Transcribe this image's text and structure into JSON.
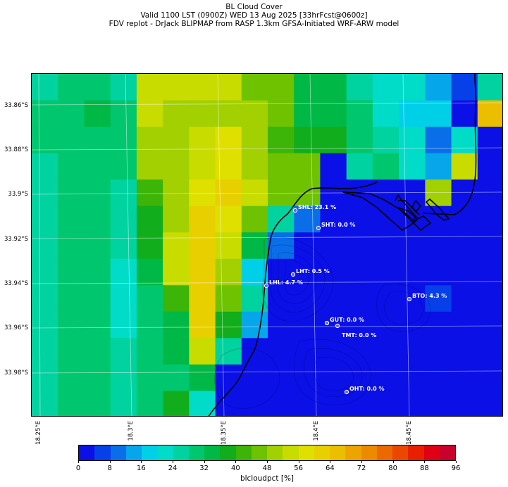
{
  "title": {
    "line1": "BL Cloud Cover",
    "line2": "Valid 1100 LST (0900Z) WED 13 Aug 2025 [33hrFcst@0600z]",
    "line3": "FDV replot - DrJack BLIPMAP from RASP 1.3km GFSA-Initiated WRF-ARW model"
  },
  "lat_labels": [
    "33.86°S",
    "33.88°S",
    "33.9°S",
    "33.92°S",
    "33.94°S",
    "33.96°S",
    "33.98°S"
  ],
  "lon_labels": [
    "18.25°E",
    "18.3°E",
    "18.35°E",
    "18.4°E",
    "18.45°E"
  ],
  "colorbar": {
    "label": "blcloudpct [%]",
    "ticks": [
      "0",
      "8",
      "16",
      "24",
      "32",
      "40",
      "48",
      "56",
      "64",
      "72",
      "80",
      "88",
      "96"
    ],
    "colors": [
      "#0a10e6",
      "#0640e8",
      "#0a6ee9",
      "#06a6ea",
      "#00cfe8",
      "#00dcc8",
      "#00d2a0",
      "#00c66e",
      "#00b845",
      "#12ad1c",
      "#3cb408",
      "#6ec200",
      "#a2d000",
      "#c8dc00",
      "#e0e000",
      "#e8d000",
      "#ecbe00",
      "#eea400",
      "#ee8a00",
      "#ec6800",
      "#ea4800",
      "#e82000",
      "#e00014",
      "#c8002c"
    ]
  },
  "stations": [
    {
      "name": "SHL",
      "value": "23.1 %",
      "label": "SHL: 23.1 %"
    },
    {
      "name": "SHT",
      "value": "0.0 %",
      "label": "SHT: 0.0 %"
    },
    {
      "name": "LHT",
      "value": "0.5 %",
      "label": "LHT: 0.5 %"
    },
    {
      "name": "LHL",
      "value": "4.7 %",
      "label": "LHL: 4.7 %"
    },
    {
      "name": "BTO",
      "value": "4.3 %",
      "label": "BTO: 4.3 %"
    },
    {
      "name": "GUT",
      "value": "0.0 %",
      "label": "GUT: 0.0 %"
    },
    {
      "name": "TMT",
      "value": "0.0 %",
      "label": "TMT: 0.0 %"
    },
    {
      "name": "OHT",
      "value": "0.0 %",
      "label": "OHT: 0.0 %"
    }
  ],
  "grid": {
    "rows": 13,
    "cols": 18,
    "values": [
      [
        26,
        30,
        30,
        26,
        52,
        52,
        52,
        52,
        44,
        44,
        34,
        34,
        26,
        20,
        20,
        12,
        4,
        26
      ],
      [
        28,
        30,
        34,
        28,
        52,
        48,
        48,
        48,
        48,
        44,
        34,
        34,
        28,
        20,
        16,
        16,
        2,
        64
      ],
      [
        28,
        30,
        30,
        28,
        48,
        48,
        52,
        56,
        48,
        40,
        38,
        36,
        28,
        24,
        20,
        10,
        22,
        2
      ],
      [
        26,
        30,
        30,
        30,
        48,
        48,
        52,
        56,
        48,
        44,
        44,
        2,
        26,
        28,
        20,
        12,
        52,
        2
      ],
      [
        26,
        28,
        30,
        26,
        40,
        48,
        58,
        60,
        54,
        44,
        46,
        2,
        2,
        2,
        2,
        48,
        2,
        2
      ],
      [
        24,
        28,
        30,
        26,
        36,
        48,
        62,
        58,
        44,
        26,
        10,
        2,
        2,
        2,
        2,
        2,
        2,
        2
      ],
      [
        24,
        28,
        30,
        26,
        36,
        54,
        62,
        54,
        32,
        10,
        2,
        2,
        2,
        2,
        2,
        2,
        2,
        2
      ],
      [
        24,
        28,
        30,
        22,
        34,
        54,
        60,
        48,
        18,
        2,
        2,
        2,
        2,
        2,
        2,
        2,
        2,
        2
      ],
      [
        24,
        28,
        30,
        22,
        28,
        40,
        62,
        44,
        24,
        2,
        2,
        2,
        2,
        2,
        2,
        4,
        2,
        2
      ],
      [
        24,
        28,
        30,
        22,
        28,
        34,
        60,
        36,
        14,
        2,
        2,
        2,
        2,
        2,
        2,
        2,
        2,
        2
      ],
      [
        26,
        30,
        30,
        24,
        28,
        34,
        52,
        24,
        2,
        2,
        2,
        2,
        2,
        2,
        2,
        2,
        2,
        2
      ],
      [
        26,
        30,
        30,
        26,
        28,
        30,
        34,
        2,
        2,
        2,
        2,
        2,
        2,
        2,
        2,
        2,
        2,
        2
      ],
      [
        26,
        30,
        30,
        26,
        28,
        38,
        22,
        2,
        2,
        2,
        2,
        2,
        2,
        2,
        2,
        2,
        2,
        2
      ]
    ]
  }
}
